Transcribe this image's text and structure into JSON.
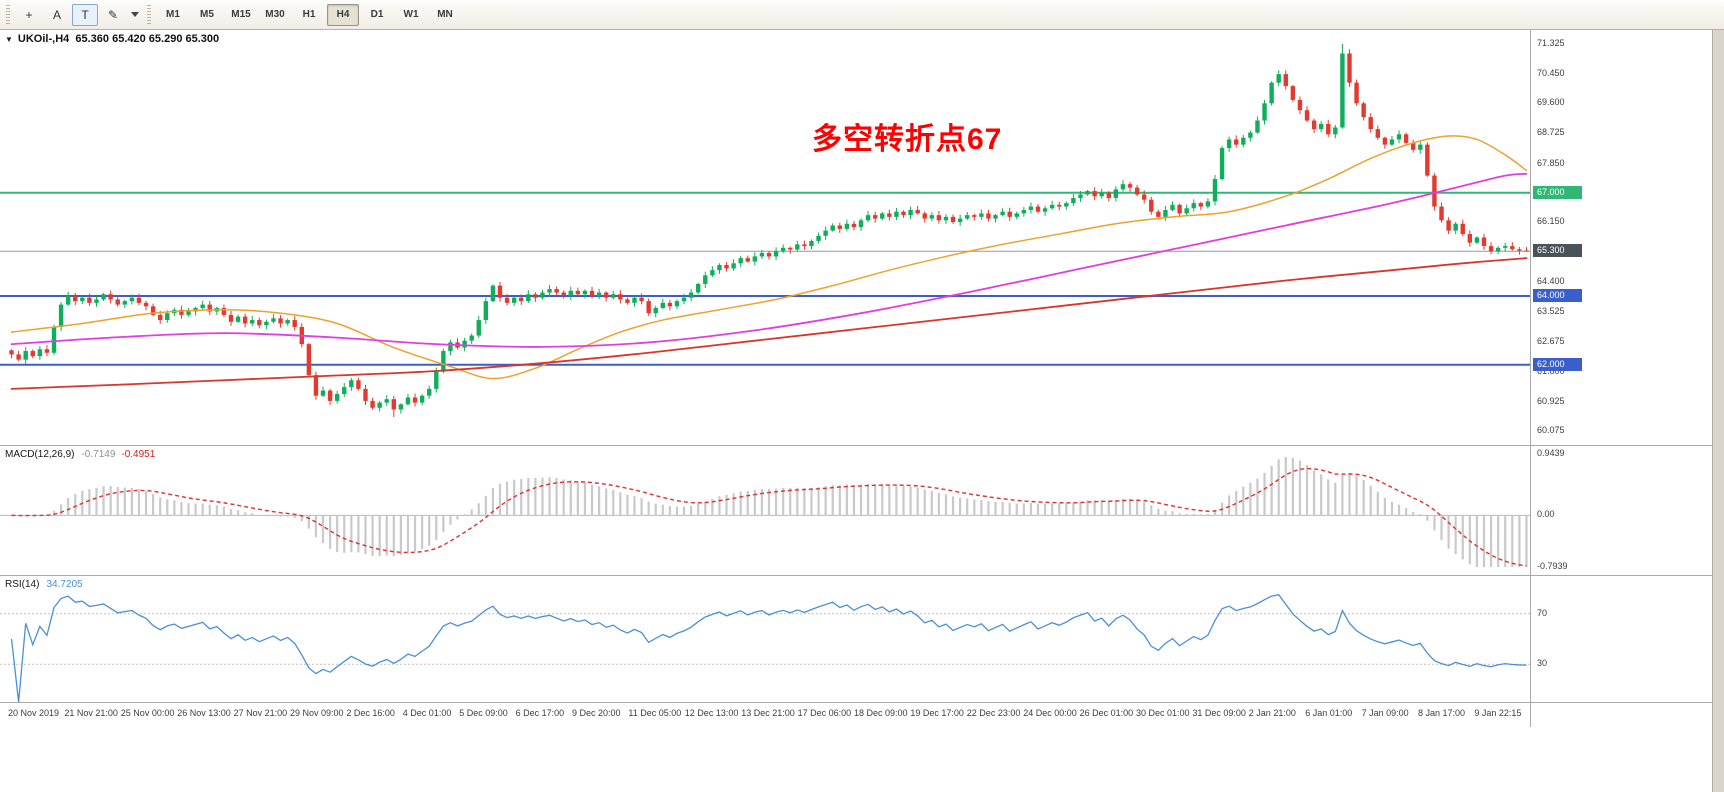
{
  "toolbar": {
    "tools": [
      {
        "name": "chart-cursor-icon",
        "glyph": "+"
      },
      {
        "name": "text-a-button",
        "glyph": "A"
      },
      {
        "name": "text-t-button",
        "glyph": "T",
        "boxed": true
      },
      {
        "name": "pencil-icon",
        "glyph": "✎"
      }
    ],
    "timeframes": [
      "M1",
      "M5",
      "M15",
      "M30",
      "H1",
      "H4",
      "D1",
      "W1",
      "MN"
    ],
    "active_timeframe": "H4"
  },
  "chart": {
    "collapse_glyph": "▼",
    "symbol_period": "UKOil-,H4",
    "ohlc_text": "65.360 65.420 65.290 65.300"
  },
  "chart_data": {
    "type": "candlestick",
    "title": "UKOil-,H4",
    "open": 65.36,
    "high": 65.42,
    "low": 65.29,
    "close": 65.3,
    "price_max": 71.325,
    "price_min": 60.075,
    "price_axis_labels": [
      "71.325",
      "70.450",
      "69.600",
      "68.725",
      "67.850",
      "66.150",
      "64.400",
      "63.525",
      "62.675",
      "61.800",
      "60.925",
      "60.075"
    ],
    "price_tags": [
      {
        "text": "67.000",
        "price": 67.0,
        "color": "#2eb873"
      },
      {
        "text": "65.300",
        "price": 65.3,
        "color": "#4a525a"
      },
      {
        "text": "64.000",
        "price": 64.0,
        "color": "#3a5fcd"
      },
      {
        "text": "62.000",
        "price": 62.0,
        "color": "#3a5fcd"
      }
    ],
    "hlines": [
      {
        "price": 67.0,
        "color": "#2eb873",
        "width": 2
      },
      {
        "price": 65.3,
        "color": "#8a9ab0",
        "width": 1
      },
      {
        "price": 64.0,
        "color": "#3a5fcd",
        "width": 2
      },
      {
        "price": 62.0,
        "color": "#3a5fcd",
        "width": 2
      }
    ],
    "time_labels": [
      "20 Nov 2019",
      "21 Nov 21:00",
      "25 Nov 00:00",
      "26 Nov 13:00",
      "27 Nov 21:00",
      "29 Nov 09:00",
      "2 Dec 16:00",
      "4 Dec 01:00",
      "5 Dec 09:00",
      "6 Dec 17:00",
      "9 Dec 20:00",
      "11 Dec 05:00",
      "12 Dec 13:00",
      "13 Dec 21:00",
      "17 Dec 06:00",
      "18 Dec 09:00",
      "19 Dec 17:00",
      "22 Dec 23:00",
      "24 Dec 00:00",
      "26 Dec 01:00",
      "30 Dec 01:00",
      "31 Dec 09:00",
      "2 Jan 21:00",
      "6 Jan 01:00",
      "7 Jan 09:00",
      "8 Jan 17:00",
      "9 Jan 22:15"
    ],
    "closes": [
      62.3,
      62.15,
      62.4,
      62.25,
      62.45,
      62.35,
      63.1,
      63.75,
      64.0,
      63.85,
      63.95,
      63.8,
      63.9,
      64.05,
      63.9,
      63.75,
      63.85,
      63.95,
      63.8,
      63.7,
      63.45,
      63.3,
      63.5,
      63.6,
      63.45,
      63.55,
      63.65,
      63.75,
      63.55,
      63.65,
      63.45,
      63.25,
      63.4,
      63.2,
      63.3,
      63.15,
      63.25,
      63.35,
      63.2,
      63.3,
      63.1,
      62.6,
      61.7,
      61.1,
      61.25,
      60.95,
      61.15,
      61.35,
      61.55,
      61.3,
      60.95,
      60.75,
      60.9,
      61.0,
      60.7,
      60.85,
      61.05,
      60.9,
      61.1,
      61.3,
      61.8,
      62.4,
      62.65,
      62.5,
      62.7,
      62.85,
      63.3,
      63.85,
      64.3,
      63.95,
      63.8,
      63.95,
      63.85,
      64.05,
      63.95,
      64.1,
      64.2,
      64.1,
      64.0,
      64.15,
      64.05,
      64.15,
      64.0,
      64.1,
      63.95,
      64.05,
      63.9,
      63.8,
      63.95,
      63.85,
      63.5,
      63.65,
      63.8,
      63.7,
      63.85,
      63.95,
      64.1,
      64.35,
      64.6,
      64.75,
      64.9,
      64.8,
      64.95,
      65.1,
      65.0,
      65.15,
      65.25,
      65.15,
      65.3,
      65.4,
      65.35,
      65.5,
      65.45,
      65.6,
      65.75,
      65.9,
      66.05,
      65.95,
      66.1,
      66.0,
      66.2,
      66.35,
      66.25,
      66.4,
      66.3,
      66.45,
      66.35,
      66.5,
      66.4,
      66.25,
      66.35,
      66.2,
      66.3,
      66.15,
      66.25,
      66.35,
      66.3,
      66.4,
      66.25,
      66.35,
      66.45,
      66.3,
      66.4,
      66.5,
      66.6,
      66.45,
      66.55,
      66.65,
      66.6,
      66.7,
      66.85,
      66.95,
      67.05,
      66.9,
      67.0,
      66.85,
      67.1,
      67.25,
      67.15,
      66.95,
      66.8,
      66.45,
      66.3,
      66.5,
      66.65,
      66.4,
      66.55,
      66.7,
      66.6,
      66.75,
      67.4,
      68.3,
      68.55,
      68.4,
      68.6,
      68.75,
      69.1,
      69.6,
      70.2,
      70.45,
      70.1,
      69.7,
      69.4,
      69.1,
      68.85,
      69.0,
      68.7,
      68.9,
      71.05,
      70.2,
      69.6,
      69.2,
      68.85,
      68.6,
      68.4,
      68.55,
      68.7,
      68.45,
      68.25,
      68.4,
      67.5,
      66.6,
      66.2,
      65.9,
      66.1,
      65.8,
      65.55,
      65.7,
      65.45,
      65.3,
      65.4,
      65.45,
      65.36,
      65.32,
      65.3
    ],
    "candle_overrides": {
      "54": {
        "low": 60.48
      },
      "188": {
        "high": 71.325
      },
      "214": {
        "high": 65.42,
        "low": 65.29
      }
    },
    "candle_up_color": "#0fae5a",
    "candle_down_color": "#e23a2e",
    "moving_averages": [
      {
        "name": "ma-fast-orange",
        "color": "#f0a02c",
        "width": 1.5,
        "anchors": [
          [
            0,
            62.95
          ],
          [
            10,
            63.2
          ],
          [
            20,
            63.5
          ],
          [
            30,
            63.6
          ],
          [
            38,
            63.5
          ],
          [
            46,
            63.2
          ],
          [
            54,
            62.5
          ],
          [
            62,
            61.95
          ],
          [
            68,
            61.6
          ],
          [
            74,
            61.9
          ],
          [
            80,
            62.45
          ],
          [
            86,
            62.95
          ],
          [
            92,
            63.3
          ],
          [
            100,
            63.6
          ],
          [
            108,
            63.9
          ],
          [
            116,
            64.3
          ],
          [
            124,
            64.75
          ],
          [
            132,
            65.15
          ],
          [
            140,
            65.5
          ],
          [
            148,
            65.8
          ],
          [
            156,
            66.1
          ],
          [
            164,
            66.3
          ],
          [
            172,
            66.45
          ],
          [
            180,
            66.9
          ],
          [
            186,
            67.4
          ],
          [
            192,
            68.0
          ],
          [
            198,
            68.45
          ],
          [
            203,
            68.65
          ],
          [
            207,
            68.55
          ],
          [
            211,
            68.1
          ],
          [
            214,
            67.65
          ]
        ]
      },
      {
        "name": "ma-mid-magenta",
        "color": "#e03ee0",
        "width": 1.8,
        "anchors": [
          [
            0,
            62.6
          ],
          [
            15,
            62.8
          ],
          [
            30,
            62.92
          ],
          [
            45,
            62.8
          ],
          [
            60,
            62.6
          ],
          [
            75,
            62.52
          ],
          [
            90,
            62.65
          ],
          [
            105,
            63.0
          ],
          [
            120,
            63.5
          ],
          [
            135,
            64.1
          ],
          [
            150,
            64.75
          ],
          [
            165,
            65.4
          ],
          [
            180,
            66.05
          ],
          [
            195,
            66.7
          ],
          [
            205,
            67.2
          ],
          [
            211,
            67.5
          ],
          [
            214,
            67.55
          ]
        ]
      },
      {
        "name": "ma-slow-red",
        "color": "#d9352a",
        "width": 1.8,
        "anchors": [
          [
            0,
            61.3
          ],
          [
            15,
            61.42
          ],
          [
            30,
            61.55
          ],
          [
            45,
            61.68
          ],
          [
            60,
            61.82
          ],
          [
            75,
            62.05
          ],
          [
            90,
            62.35
          ],
          [
            105,
            62.7
          ],
          [
            120,
            63.05
          ],
          [
            135,
            63.4
          ],
          [
            150,
            63.75
          ],
          [
            165,
            64.1
          ],
          [
            180,
            64.45
          ],
          [
            195,
            64.75
          ],
          [
            205,
            64.95
          ],
          [
            214,
            65.1
          ]
        ]
      }
    ],
    "annotation": {
      "text": "多空转折点67",
      "color": "#ff0000"
    },
    "indicators": {
      "macd": {
        "name_text": "MACD(12,26,9)",
        "value_main": "-0.7149",
        "value_signal": "-0.4951",
        "fast": 12,
        "slow": 26,
        "signal": 9,
        "axis_top": "0.9439",
        "axis_zero": "0.00",
        "axis_bottom": "-0.7939",
        "max": 0.9439,
        "min": -0.7939,
        "hist_color": "#c9c9c9",
        "signal_color": "#e03030"
      },
      "rsi": {
        "name_text": "RSI(14)",
        "value_text": "34.7205",
        "period": 14,
        "levels": [
          "70",
          "30"
        ],
        "line_color": "#4a90d9"
      }
    }
  }
}
